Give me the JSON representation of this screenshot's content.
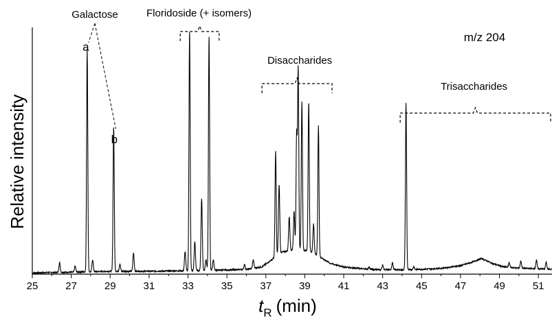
{
  "chart_data": {
    "type": "line",
    "title": "",
    "xlabel_main": "t",
    "xlabel_sub": "R",
    "xlabel_unit": "(min)",
    "ylabel": "Relative intensity",
    "xlim": [
      25,
      51.7
    ],
    "ylim": [
      0,
      1.0
    ],
    "x_ticks": [
      25,
      27,
      29,
      31,
      33,
      35,
      37,
      39,
      41,
      43,
      45,
      47,
      49,
      51
    ],
    "grid": false,
    "mz_label": "m/z 204",
    "baseline_drift": [
      [
        25,
        0.005
      ],
      [
        26,
        0.007
      ],
      [
        27,
        0.008
      ],
      [
        28,
        0.01
      ],
      [
        29,
        0.012
      ],
      [
        30,
        0.012
      ],
      [
        31,
        0.012
      ],
      [
        32,
        0.013
      ],
      [
        33,
        0.014
      ],
      [
        34,
        0.016
      ],
      [
        35,
        0.017
      ],
      [
        36,
        0.02
      ],
      [
        36.8,
        0.03
      ],
      [
        37.3,
        0.06
      ],
      [
        37.8,
        0.09
      ],
      [
        38.3,
        0.1
      ],
      [
        38.8,
        0.1
      ],
      [
        39.3,
        0.095
      ],
      [
        39.8,
        0.07
      ],
      [
        40.3,
        0.045
      ],
      [
        41,
        0.03
      ],
      [
        42,
        0.022
      ],
      [
        43,
        0.018
      ],
      [
        44,
        0.018
      ],
      [
        45,
        0.02
      ],
      [
        46,
        0.024
      ],
      [
        47,
        0.035
      ],
      [
        47.6,
        0.05
      ],
      [
        48.1,
        0.065
      ],
      [
        48.6,
        0.045
      ],
      [
        49.2,
        0.03
      ],
      [
        50,
        0.025
      ],
      [
        51,
        0.022
      ],
      [
        51.7,
        0.02
      ]
    ],
    "peaks": [
      {
        "x": 26.4,
        "y": 0.04
      },
      {
        "x": 27.2,
        "y": 0.025
      },
      {
        "x": 27.82,
        "y": 0.925
      },
      {
        "x": 28.1,
        "y": 0.05
      },
      {
        "x": 29.18,
        "y": 0.6
      },
      {
        "x": 29.5,
        "y": 0.03
      },
      {
        "x": 30.2,
        "y": 0.075
      },
      {
        "x": 32.85,
        "y": 0.08
      },
      {
        "x": 33.08,
        "y": 1.0
      },
      {
        "x": 33.35,
        "y": 0.12
      },
      {
        "x": 33.7,
        "y": 0.3
      },
      {
        "x": 33.92,
        "y": 0.045
      },
      {
        "x": 34.08,
        "y": 0.975
      },
      {
        "x": 34.3,
        "y": 0.045
      },
      {
        "x": 35.9,
        "y": 0.02
      },
      {
        "x": 36.35,
        "y": 0.035
      },
      {
        "x": 37.5,
        "y": 0.44
      },
      {
        "x": 37.68,
        "y": 0.29
      },
      {
        "x": 38.2,
        "y": 0.14
      },
      {
        "x": 38.45,
        "y": 0.16
      },
      {
        "x": 38.58,
        "y": 0.48
      },
      {
        "x": 38.66,
        "y": 0.75
      },
      {
        "x": 38.85,
        "y": 0.62
      },
      {
        "x": 39.2,
        "y": 0.62
      },
      {
        "x": 39.45,
        "y": 0.12
      },
      {
        "x": 39.7,
        "y": 0.54
      },
      {
        "x": 42.3,
        "y": 0.008
      },
      {
        "x": 43.0,
        "y": 0.02
      },
      {
        "x": 43.5,
        "y": 0.03
      },
      {
        "x": 44.2,
        "y": 0.69
      },
      {
        "x": 44.6,
        "y": 0.012
      },
      {
        "x": 49.5,
        "y": 0.02
      },
      {
        "x": 50.1,
        "y": 0.03
      },
      {
        "x": 50.9,
        "y": 0.035
      },
      {
        "x": 51.4,
        "y": 0.028
      }
    ],
    "annotations": [
      {
        "text": "Galactose",
        "group_x": [
          27.82,
          29.18
        ]
      },
      {
        "text": "a",
        "at_peak": 27.82
      },
      {
        "text": "b",
        "at_peak": 29.18
      },
      {
        "text": "Floridoside (+ isomers)",
        "bracket": [
          32.6,
          34.6
        ]
      },
      {
        "text": "Disaccharides",
        "bracket": [
          36.8,
          40.4
        ]
      },
      {
        "text": "Trisaccharides",
        "bracket": [
          43.9,
          51.7
        ]
      }
    ]
  }
}
